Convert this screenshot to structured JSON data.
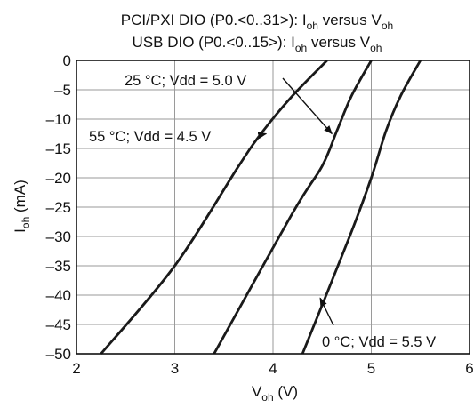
{
  "chart_data": {
    "type": "line",
    "title_lines": [
      {
        "main": "PCI/PXI DIO (P0.<0..31>): I",
        "sub1": "oh",
        "mid": " versus V",
        "sub2": "oh"
      },
      {
        "main": "USB DIO (P0.<0..15>): I",
        "sub1": "oh",
        "mid": " versus V",
        "sub2": "oh"
      }
    ],
    "xlabel": {
      "main": "V",
      "sub": "oh",
      "rest": " (V)"
    },
    "ylabel": {
      "main": "I",
      "sub": "oh",
      "rest": " (mA)"
    },
    "xlim": [
      2,
      6
    ],
    "ylim": [
      -50,
      0
    ],
    "xticks": [
      2,
      3,
      4,
      5,
      6
    ],
    "yticks": [
      0,
      -5,
      -10,
      -15,
      -20,
      -25,
      -30,
      -35,
      -40,
      -45,
      -50
    ],
    "xtick_labels": [
      "2",
      "3",
      "4",
      "5",
      "6"
    ],
    "ytick_labels": [
      "0",
      "–5",
      "–10",
      "–15",
      "–20",
      "–25",
      "–30",
      "–35",
      "–40",
      "–45",
      "–50"
    ],
    "grid": true,
    "line_color": "#1a1a1a",
    "series": [
      {
        "name": "55 °C; Vdd = 4.5 V",
        "x": [
          4.55,
          4.2,
          3.9,
          3.65,
          3.0,
          2.25
        ],
        "y": [
          0,
          -6,
          -12,
          -18,
          -35,
          -50
        ]
      },
      {
        "name": "25 °C; Vdd = 5.0 V",
        "x": [
          5.0,
          4.8,
          4.65,
          4.5,
          4.2,
          3.4
        ],
        "y": [
          0,
          -6,
          -12,
          -18,
          -26,
          -50
        ]
      },
      {
        "name": "0 °C; Vdd = 5.5 V",
        "x": [
          5.5,
          5.3,
          5.15,
          5.0,
          4.78,
          4.3
        ],
        "y": [
          0,
          -6,
          -12,
          -20,
          -30,
          -50
        ]
      }
    ],
    "annotations": [
      {
        "text": "25 °C; Vdd = 5.0 V",
        "series": "25 °C; Vdd = 5.0 V",
        "points_to": {
          "x": 4.6,
          "y": -12.5
        }
      },
      {
        "text": "55 °C; Vdd = 4.5 V",
        "series": "55 °C; Vdd = 4.5 V",
        "points_to": {
          "x": 3.93,
          "y": -12.5
        }
      },
      {
        "text": "0 °C; Vdd = 5.5 V",
        "series": "0 °C; Vdd = 5.5 V",
        "points_to": {
          "x": 4.48,
          "y": -40.5
        }
      }
    ]
  }
}
